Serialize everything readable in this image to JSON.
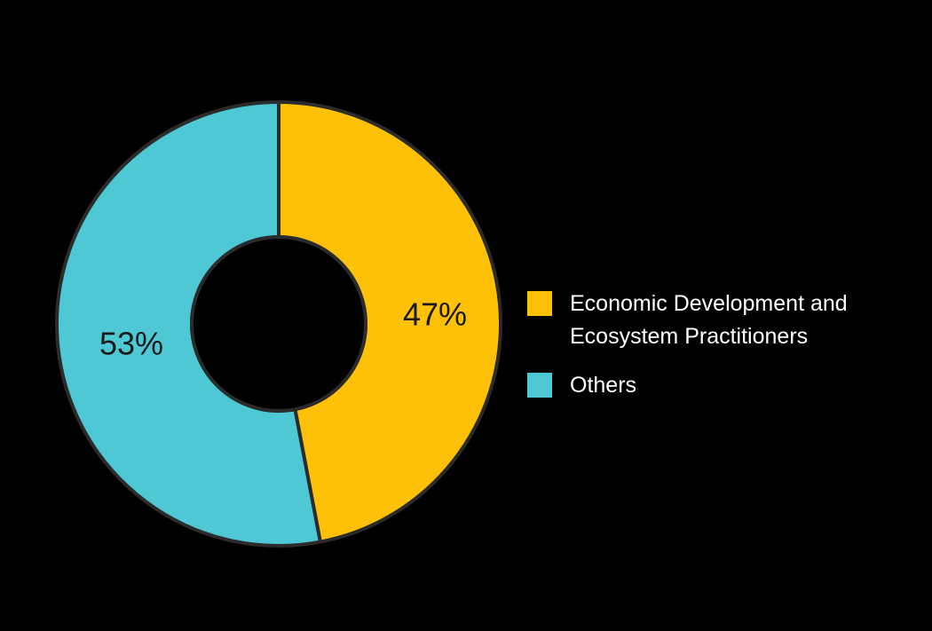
{
  "chart_data": {
    "type": "pie",
    "donut": true,
    "categories": [
      "Economic Development and Ecosystem Practitioners",
      "Others"
    ],
    "values": [
      47,
      53
    ],
    "labels": [
      "47%",
      "53%"
    ],
    "colors": [
      "#FFC107",
      "#4DC8D4"
    ],
    "outline_color": "#2b2b2b",
    "legend": [
      "Economic Development and Ecosystem Practitioners",
      "Others"
    ],
    "legend_position": "right"
  },
  "background": "#000000"
}
